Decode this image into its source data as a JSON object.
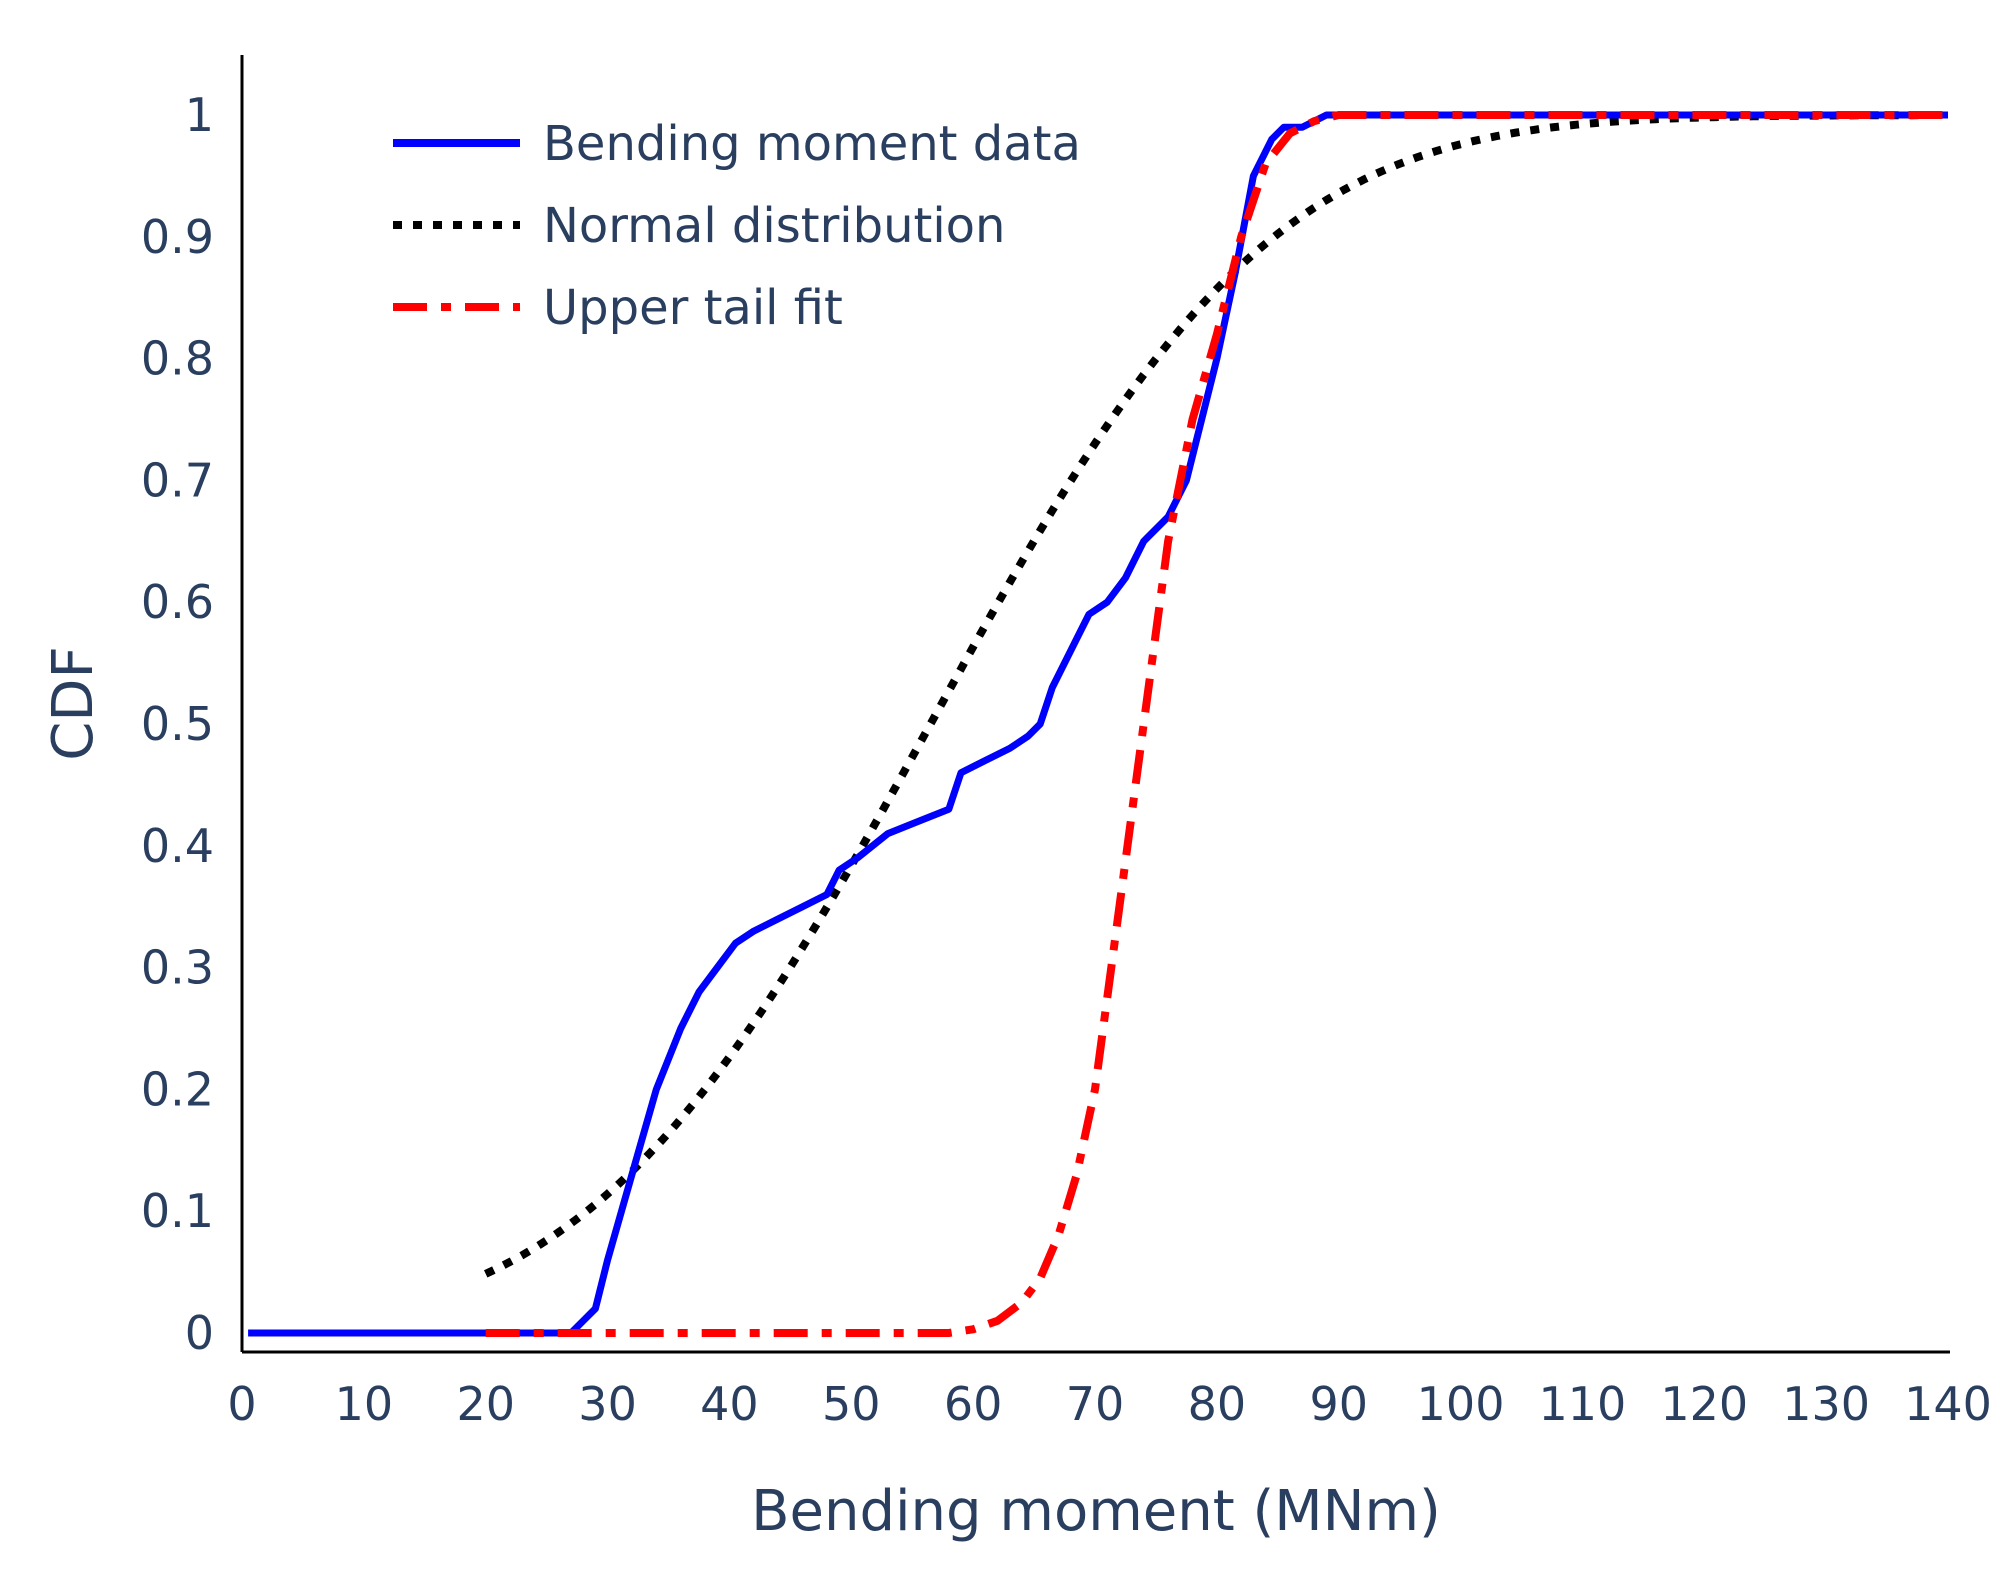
{
  "chart_data": {
    "type": "line",
    "xlabel": "Bending moment (MNm)",
    "ylabel": "CDF",
    "xlim": [
      0,
      140
    ],
    "ylim": [
      0,
      1
    ],
    "x_ticks": [
      "0",
      "10",
      "20",
      "30",
      "40",
      "50",
      "60",
      "70",
      "80",
      "90",
      "100",
      "110",
      "120",
      "130",
      "140"
    ],
    "y_ticks": [
      "0",
      "0.1",
      "0.2",
      "0.3",
      "0.4",
      "0.5",
      "0.6",
      "0.7",
      "0.8",
      "0.9",
      "1"
    ],
    "grid": false,
    "legend_position": "top-left",
    "series": [
      {
        "name": "Bending moment data",
        "color": "#0000ff",
        "line_style": "solid",
        "x": [
          0.5,
          20,
          27,
          28,
          29,
          30,
          32,
          34,
          36,
          37.5,
          39,
          40.5,
          42,
          44,
          46,
          48,
          49,
          50.5,
          53,
          55.5,
          58,
          59,
          61,
          63,
          64.5,
          65.5,
          66.5,
          68,
          69.5,
          71,
          72.5,
          74,
          76,
          77.5,
          78.5,
          80,
          81.5,
          83,
          84.5,
          85.5,
          87,
          89,
          95,
          100,
          140
        ],
        "y": [
          0,
          0,
          0,
          0.01,
          0.02,
          0.06,
          0.13,
          0.2,
          0.25,
          0.28,
          0.3,
          0.32,
          0.33,
          0.34,
          0.35,
          0.36,
          0.38,
          0.39,
          0.41,
          0.42,
          0.43,
          0.46,
          0.47,
          0.48,
          0.49,
          0.5,
          0.53,
          0.56,
          0.59,
          0.6,
          0.62,
          0.65,
          0.67,
          0.7,
          0.74,
          0.8,
          0.87,
          0.95,
          0.98,
          0.99,
          0.99,
          1.0,
          1.0,
          1.0,
          1.0
        ]
      },
      {
        "name": "Normal distribution",
        "color": "#000000",
        "line_style": "dotted",
        "mean": 56.5,
        "std": 22
      },
      {
        "name": "Upper tail fit",
        "color": "#ff0000",
        "line_style": "dashdot",
        "x": [
          20,
          40,
          58,
          60,
          62,
          64,
          65.5,
          67,
          68.5,
          70,
          72,
          74,
          76,
          78,
          80,
          82,
          84,
          86,
          88,
          90,
          100,
          140
        ],
        "y": [
          0,
          0,
          0,
          0.003,
          0.01,
          0.025,
          0.045,
          0.08,
          0.13,
          0.2,
          0.35,
          0.5,
          0.65,
          0.75,
          0.82,
          0.9,
          0.96,
          0.985,
          0.995,
          1.0,
          1.0,
          1.0
        ]
      }
    ]
  }
}
